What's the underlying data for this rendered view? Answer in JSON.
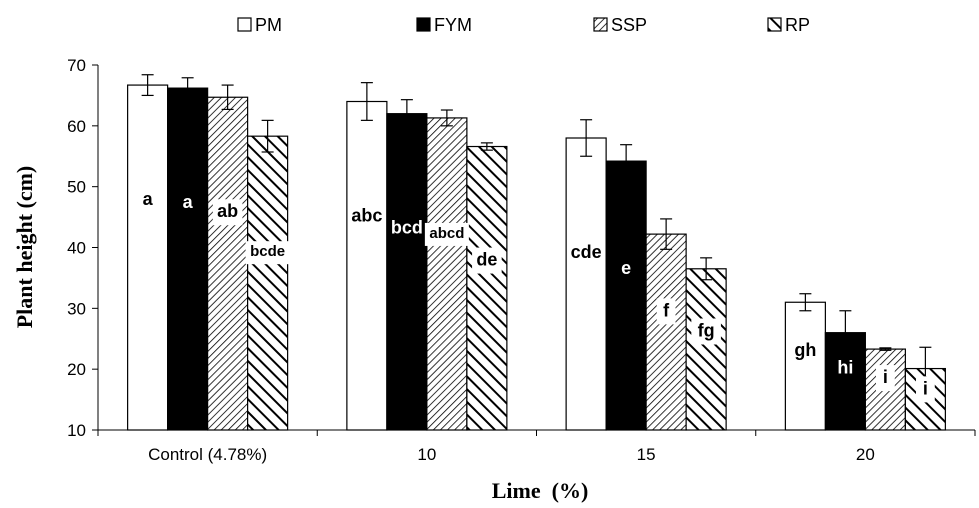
{
  "chart_data": {
    "type": "bar",
    "title": "",
    "xlabel": "Lime  (%)",
    "ylabel": "Plant height (cm)",
    "ylim": [
      10,
      70
    ],
    "yticks": [
      10,
      20,
      30,
      40,
      50,
      60,
      70
    ],
    "grid": false,
    "legend_position": "top",
    "categories": [
      "Control (4.78%)",
      "10",
      "15",
      "20"
    ],
    "series": [
      {
        "name": "PM",
        "pattern": "empty",
        "values": [
          66.7,
          64.0,
          58.0,
          31.0
        ],
        "errors": [
          1.7,
          3.1,
          3.0,
          1.4
        ],
        "letters": [
          "a",
          "abc",
          "cde",
          "gh"
        ]
      },
      {
        "name": "FYM",
        "pattern": "solid",
        "values": [
          66.2,
          62.0,
          54.2,
          26.0
        ],
        "errors": [
          1.7,
          2.3,
          2.7,
          3.6
        ],
        "letters": [
          "a",
          "bcd",
          "e",
          "hi"
        ]
      },
      {
        "name": "SSP",
        "pattern": "forward-diagonal",
        "values": [
          64.7,
          61.3,
          42.2,
          23.3
        ],
        "errors": [
          2.0,
          1.3,
          2.5,
          0.2
        ],
        "letters": [
          "ab",
          "abcd",
          "f",
          "i"
        ]
      },
      {
        "name": "RP",
        "pattern": "backward-diagonal",
        "values": [
          58.3,
          56.6,
          36.5,
          20.1
        ],
        "errors": [
          2.6,
          0.6,
          1.8,
          3.5
        ],
        "letters": [
          "bcde",
          "de",
          "fg",
          "i"
        ]
      }
    ]
  }
}
